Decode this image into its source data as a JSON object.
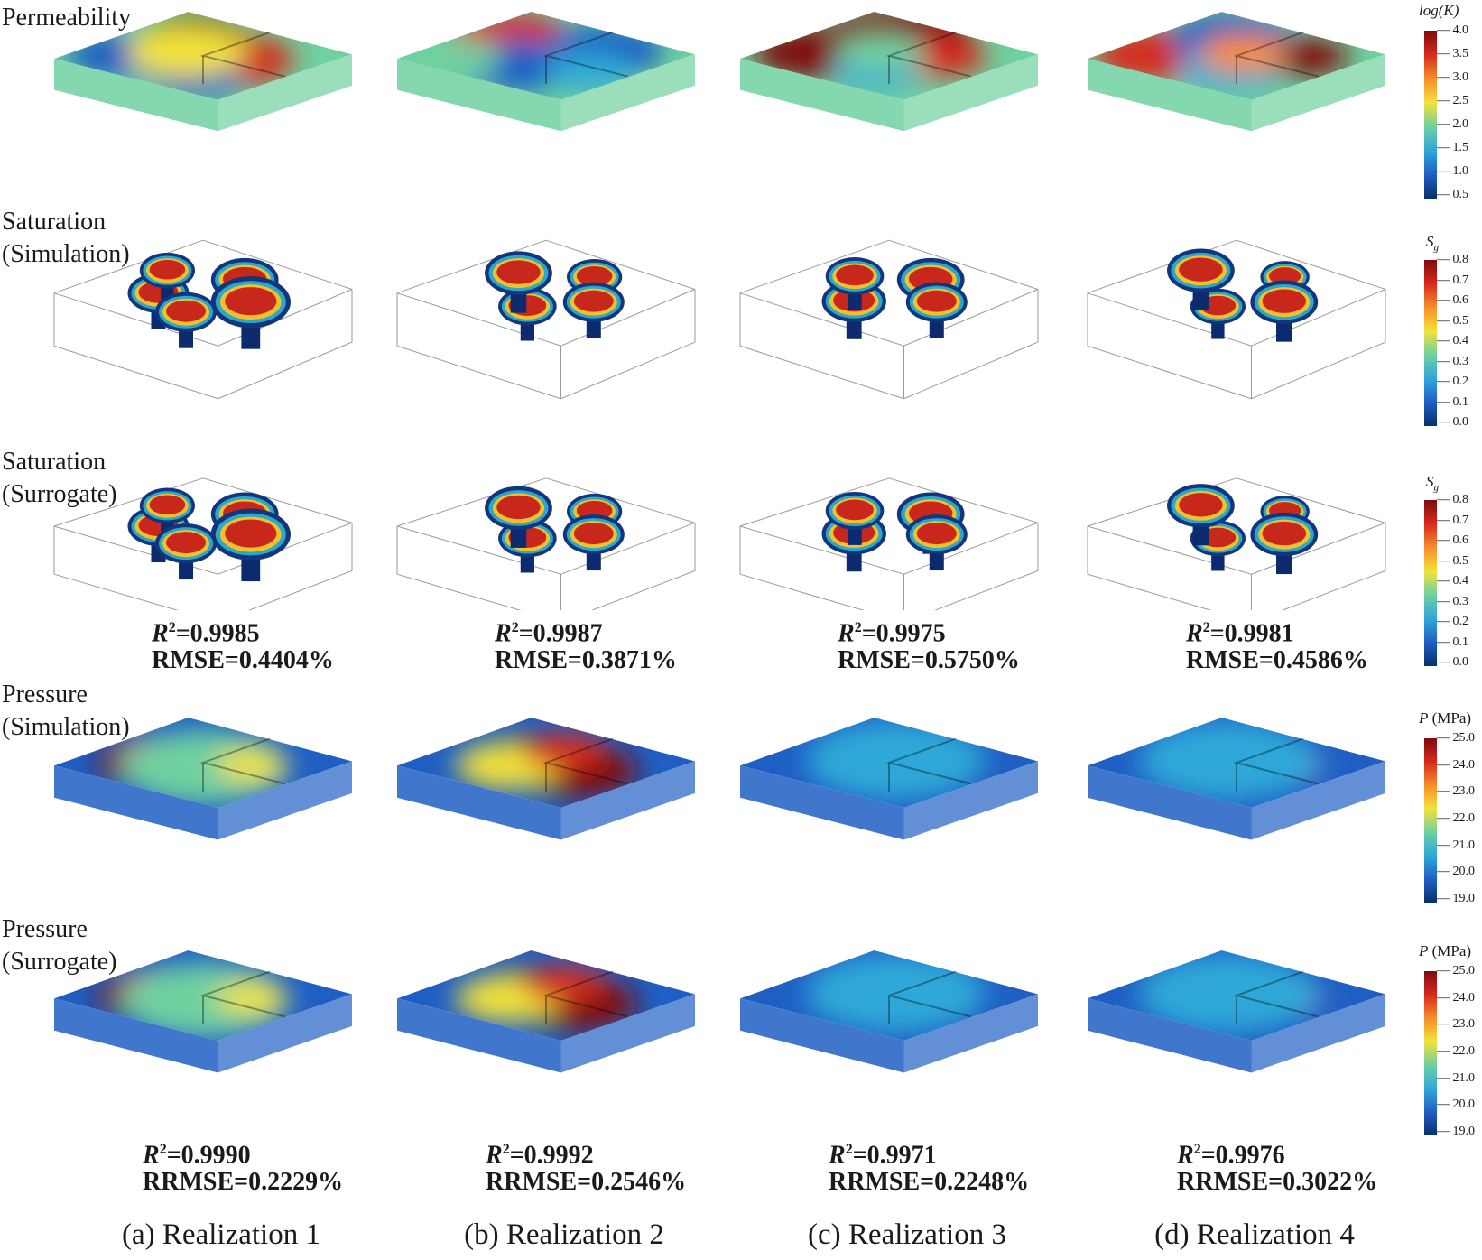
{
  "row_labels": {
    "permeability": "Permeability",
    "sat_sim_1": "Saturation",
    "sat_sim_2": "(Simulation)",
    "sat_sur_1": "Saturation",
    "sat_sur_2": "(Surrogate)",
    "pre_sim_1": "Pressure",
    "pre_sim_2": "(Simulation)",
    "pre_sur_1": "Pressure",
    "pre_sur_2": "(Surrogate)"
  },
  "columns": [
    {
      "caption": "(a) Realization 1",
      "sat_r2": "=0.9985",
      "sat_rmse": "RMSE=0.4404%",
      "pre_r2": "=0.9990",
      "pre_rrmse": "RRMSE=0.2229%"
    },
    {
      "caption": "(b) Realization 2",
      "sat_r2": "=0.9987",
      "sat_rmse": "RMSE=0.3871%",
      "pre_r2": "=0.9992",
      "pre_rrmse": "RRMSE=0.2546%"
    },
    {
      "caption": "(c) Realization 3",
      "sat_r2": "=0.9975",
      "sat_rmse": "RMSE=0.5750%",
      "pre_r2": "=0.9971",
      "pre_rrmse": "RRMSE=0.2248%"
    },
    {
      "caption": "(d) Realization 4",
      "sat_r2": "=0.9981",
      "sat_rmse": "RMSE=0.4586%",
      "pre_r2": "=0.9976",
      "pre_rrmse": "RRMSE=0.3022%"
    }
  ],
  "r2_prefix": "R",
  "r2_sup": "2",
  "colorbars": {
    "perm": {
      "title": "log(K)",
      "ticks": [
        "4.0",
        "3.5",
        "3.0",
        "2.5",
        "2.0",
        "1.5",
        "1.0",
        "0.5"
      ]
    },
    "sat_sim": {
      "title_main": "S",
      "title_sub": "g",
      "ticks": [
        "0.8",
        "0.7",
        "0.6",
        "0.5",
        "0.4",
        "0.3",
        "0.2",
        "0.1",
        "0.0"
      ]
    },
    "sat_sur": {
      "title_main": "S",
      "title_sub": "g",
      "ticks": [
        "0.8",
        "0.7",
        "0.6",
        "0.5",
        "0.4",
        "0.3",
        "0.2",
        "0.1",
        "0.0"
      ]
    },
    "pre_sim": {
      "title_main": "P",
      "title_unit": " (MPa)",
      "ticks": [
        "25.0",
        "24.0",
        "23.0",
        "22.0",
        "21.0",
        "20.0",
        "19.0"
      ]
    },
    "pre_sur": {
      "title_main": "P",
      "title_unit": " (MPa)",
      "ticks": [
        "25.0",
        "24.0",
        "23.0",
        "22.0",
        "21.0",
        "20.0",
        "19.0"
      ]
    }
  },
  "colormap": [
    "#08306b",
    "#1f5fc4",
    "#2fa8d8",
    "#6fd0a0",
    "#f3e23a",
    "#f78d2a",
    "#d62a1e",
    "#7f0a10"
  ]
}
